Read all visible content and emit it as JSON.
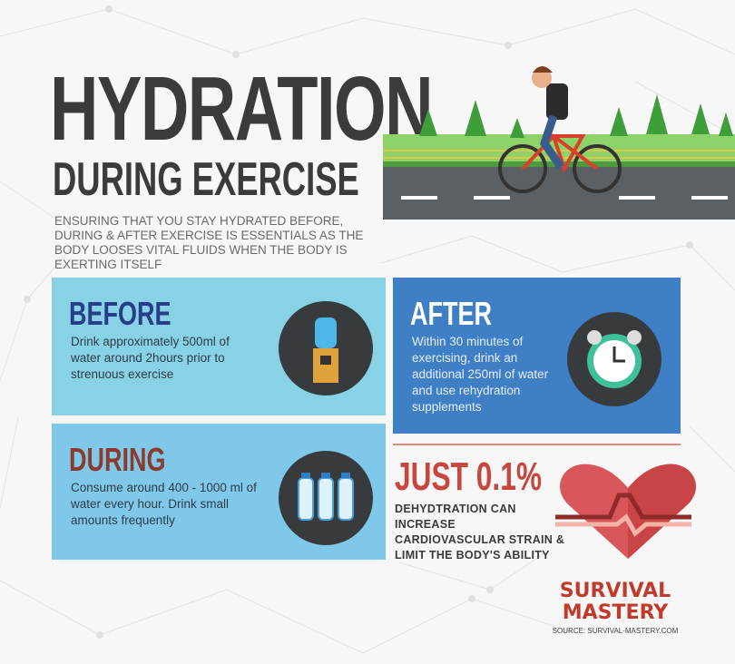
{
  "title": {
    "line1": "HYDRATION",
    "line2": "DURING EXERCISE"
  },
  "subtitle": "ENSURING THAT YOU STAY HYDRATED BEFORE, DURING & AFTER EXERCISE IS ESSENTIALS AS THE BODY LOOSES VITAL FLUIDS WHEN THE BODY IS EXERTING ITSELF",
  "sections": {
    "before": {
      "heading": "BEFORE",
      "text": "Drink approximately 500ml of water around 2hours prior to strenuous exercise",
      "icon": "water-cooler-icon",
      "color": "#87d2e4"
    },
    "during": {
      "heading": "DURING",
      "text": "Consume around 400 - 1000 ml of water every hour. Drink small amounts frequently",
      "icon": "water-bottles-icon",
      "color": "#80c8ea"
    },
    "after": {
      "heading": "AFTER",
      "text": "Within 30 minutes of exercising, drink an additional 250ml of water and use rehydration supplements",
      "icon": "alarm-clock-icon",
      "color": "#3f7fc6"
    }
  },
  "stat": {
    "headline": "JUST 0.1%",
    "text": "DEHYDTRATION CAN INCREASE CARDIOVASCULAR STRAIN & LIMIT THE BODY'S ABILITY",
    "icon": "heart-pulse-icon",
    "color": "#c9463f"
  },
  "footer": {
    "logo": "SURVIVAL MASTERY",
    "logo_line1": "SURVIVAL",
    "logo_line2": "MASTERY",
    "source": "SOURCE: SURVIVAL-MASTERY.COM"
  }
}
